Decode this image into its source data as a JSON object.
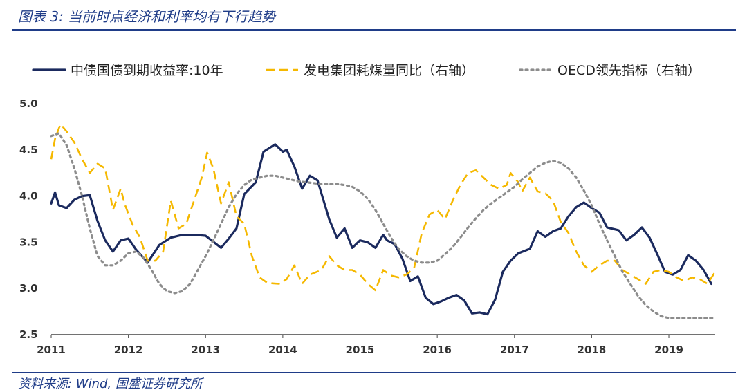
{
  "header": {
    "title": "图表 3:  当前时点经济和利率均有下行趋势"
  },
  "footer": {
    "source": "资料来源:  Wind, 国盛证券研究所"
  },
  "colors": {
    "navy": "#1b2a5e",
    "gold": "#f5b800",
    "gray": "#8c8c8c",
    "brand": "#1f3c88"
  },
  "chart_data": {
    "type": "line",
    "title": "当前时点经济和利率均有下行趋势",
    "xlabel": "",
    "ylabel": "",
    "xlim": [
      2011,
      2019.6
    ],
    "ylim": [
      2.5,
      5.0
    ],
    "yticks": [
      "5.0",
      "4.5",
      "4.0",
      "3.5",
      "3.0",
      "2.5"
    ],
    "xticks": [
      "2011",
      "2012",
      "2013",
      "2014",
      "2015",
      "2016",
      "2017",
      "2018",
      "2019"
    ],
    "legend_position": "top",
    "series": [
      {
        "name": "中债国债到期收益率:10年",
        "style": "solid",
        "color": "#1b2a5e",
        "x": [
          2011.0,
          2011.05,
          2011.1,
          2011.2,
          2011.3,
          2011.4,
          2011.5,
          2011.6,
          2011.7,
          2011.8,
          2011.9,
          2012.0,
          2012.1,
          2012.25,
          2012.4,
          2012.55,
          2012.7,
          2012.85,
          2013.0,
          2013.2,
          2013.3,
          2013.4,
          2013.5,
          2013.65,
          2013.75,
          2013.9,
          2014.0,
          2014.05,
          2014.15,
          2014.25,
          2014.35,
          2014.45,
          2014.6,
          2014.7,
          2014.8,
          2014.9,
          2015.0,
          2015.1,
          2015.2,
          2015.3,
          2015.35,
          2015.45,
          2015.55,
          2015.65,
          2015.75,
          2015.85,
          2015.95,
          2016.05,
          2016.15,
          2016.25,
          2016.35,
          2016.45,
          2016.55,
          2016.65,
          2016.75,
          2016.85,
          2016.95,
          2017.05,
          2017.2,
          2017.3,
          2017.4,
          2017.5,
          2017.6,
          2017.7,
          2017.8,
          2017.9,
          2018.0,
          2018.1,
          2018.2,
          2018.35,
          2018.45,
          2018.55,
          2018.65,
          2018.75,
          2018.85,
          2018.95,
          2019.05,
          2019.15,
          2019.25,
          2019.35,
          2019.45,
          2019.55
        ],
        "values": [
          3.92,
          4.04,
          3.9,
          3.87,
          3.96,
          4.0,
          4.01,
          3.73,
          3.52,
          3.4,
          3.52,
          3.54,
          3.42,
          3.28,
          3.47,
          3.55,
          3.58,
          3.58,
          3.57,
          3.44,
          3.54,
          3.65,
          4.02,
          4.15,
          4.48,
          4.56,
          4.48,
          4.5,
          4.32,
          4.08,
          4.22,
          4.17,
          3.75,
          3.55,
          3.65,
          3.44,
          3.52,
          3.5,
          3.44,
          3.58,
          3.52,
          3.48,
          3.32,
          3.08,
          3.13,
          2.9,
          2.83,
          2.86,
          2.9,
          2.93,
          2.87,
          2.73,
          2.74,
          2.72,
          2.88,
          3.18,
          3.3,
          3.38,
          3.43,
          3.62,
          3.56,
          3.62,
          3.65,
          3.78,
          3.88,
          3.93,
          3.87,
          3.82,
          3.66,
          3.63,
          3.52,
          3.58,
          3.66,
          3.55,
          3.37,
          3.18,
          3.15,
          3.2,
          3.36,
          3.3,
          3.2,
          3.05
        ]
      },
      {
        "name": "发电集团耗煤量同比（右轴）",
        "style": "dashed",
        "color": "#f5b800",
        "x": [
          2011.0,
          2011.05,
          2011.12,
          2011.2,
          2011.3,
          2011.4,
          2011.5,
          2011.6,
          2011.7,
          2011.8,
          2011.9,
          2011.95,
          2012.05,
          2012.15,
          2012.25,
          2012.35,
          2012.45,
          2012.55,
          2012.65,
          2012.75,
          2012.85,
          2012.95,
          2013.02,
          2013.1,
          2013.2,
          2013.3,
          2013.4,
          2013.5,
          2013.6,
          2013.7,
          2013.8,
          2013.95,
          2014.05,
          2014.15,
          2014.25,
          2014.35,
          2014.5,
          2014.6,
          2014.7,
          2014.8,
          2014.9,
          2015.0,
          2015.1,
          2015.2,
          2015.3,
          2015.4,
          2015.5,
          2015.6,
          2015.7,
          2015.8,
          2015.9,
          2016.0,
          2016.1,
          2016.2,
          2016.3,
          2016.4,
          2016.5,
          2016.6,
          2016.7,
          2016.8,
          2016.9,
          2016.95,
          2017.05,
          2017.1,
          2017.2,
          2017.3,
          2017.4,
          2017.5,
          2017.6,
          2017.7,
          2017.8,
          2017.9,
          2018.0,
          2018.1,
          2018.2,
          2018.3,
          2018.4,
          2018.5,
          2018.6,
          2018.7,
          2018.8,
          2018.9,
          2019.0,
          2019.1,
          2019.2,
          2019.3,
          2019.4,
          2019.5,
          2019.6
        ],
        "values": [
          4.4,
          4.62,
          4.78,
          4.7,
          4.58,
          4.4,
          4.25,
          4.35,
          4.3,
          3.85,
          4.08,
          3.92,
          3.7,
          3.55,
          3.3,
          3.3,
          3.4,
          3.95,
          3.65,
          3.7,
          3.95,
          4.2,
          4.47,
          4.3,
          3.92,
          4.15,
          3.78,
          3.7,
          3.35,
          3.12,
          3.06,
          3.05,
          3.1,
          3.25,
          3.05,
          3.15,
          3.2,
          3.35,
          3.25,
          3.2,
          3.2,
          3.15,
          3.05,
          2.98,
          3.2,
          3.14,
          3.12,
          3.15,
          3.22,
          3.6,
          3.8,
          3.85,
          3.75,
          3.95,
          4.12,
          4.25,
          4.28,
          4.2,
          4.12,
          4.08,
          4.12,
          4.25,
          4.15,
          4.05,
          4.2,
          4.05,
          4.03,
          3.95,
          3.72,
          3.6,
          3.4,
          3.25,
          3.18,
          3.25,
          3.3,
          3.3,
          3.2,
          3.15,
          3.1,
          3.05,
          3.18,
          3.2,
          3.18,
          3.12,
          3.08,
          3.12,
          3.1,
          3.05,
          3.18
        ]
      },
      {
        "name": "OECD领先指标（右轴）",
        "style": "dotted",
        "color": "#8c8c8c",
        "x": [
          2011.0,
          2011.1,
          2011.2,
          2011.3,
          2011.4,
          2011.5,
          2011.6,
          2011.7,
          2011.8,
          2011.9,
          2012.0,
          2012.1,
          2012.2,
          2012.3,
          2012.4,
          2012.5,
          2012.6,
          2012.7,
          2012.8,
          2012.9,
          2013.0,
          2013.1,
          2013.2,
          2013.3,
          2013.4,
          2013.5,
          2013.6,
          2013.7,
          2013.8,
          2013.9,
          2014.0,
          2014.1,
          2014.2,
          2014.3,
          2014.4,
          2014.5,
          2014.6,
          2014.7,
          2014.8,
          2014.9,
          2015.0,
          2015.1,
          2015.2,
          2015.3,
          2015.4,
          2015.5,
          2015.6,
          2015.7,
          2015.8,
          2015.9,
          2016.0,
          2016.1,
          2016.2,
          2016.3,
          2016.4,
          2016.5,
          2016.6,
          2016.7,
          2016.8,
          2016.9,
          2017.0,
          2017.1,
          2017.2,
          2017.3,
          2017.4,
          2017.5,
          2017.6,
          2017.7,
          2017.8,
          2017.9,
          2018.0,
          2018.1,
          2018.2,
          2018.3,
          2018.4,
          2018.5,
          2018.6,
          2018.7,
          2018.8,
          2018.9,
          2019.0,
          2019.1,
          2019.2,
          2019.3,
          2019.4,
          2019.5,
          2019.6
        ],
        "values": [
          4.65,
          4.68,
          4.55,
          4.3,
          4.0,
          3.65,
          3.35,
          3.25,
          3.25,
          3.3,
          3.38,
          3.4,
          3.33,
          3.2,
          3.05,
          2.97,
          2.95,
          2.97,
          3.05,
          3.2,
          3.35,
          3.52,
          3.7,
          3.88,
          4.02,
          4.12,
          4.18,
          4.2,
          4.22,
          4.22,
          4.2,
          4.18,
          4.16,
          4.15,
          4.14,
          4.13,
          4.13,
          4.13,
          4.12,
          4.1,
          4.05,
          3.97,
          3.85,
          3.7,
          3.55,
          3.43,
          3.35,
          3.3,
          3.28,
          3.28,
          3.3,
          3.37,
          3.45,
          3.55,
          3.66,
          3.76,
          3.85,
          3.92,
          3.98,
          4.04,
          4.1,
          4.18,
          4.25,
          4.32,
          4.36,
          4.38,
          4.36,
          4.3,
          4.2,
          4.06,
          3.9,
          3.7,
          3.52,
          3.35,
          3.18,
          3.05,
          2.92,
          2.82,
          2.75,
          2.7,
          2.68,
          2.68,
          2.68,
          2.68,
          2.68,
          2.68,
          2.68
        ]
      }
    ]
  }
}
